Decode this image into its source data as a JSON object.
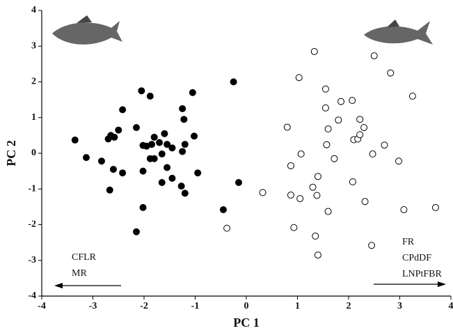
{
  "chart_data": {
    "type": "scatter",
    "xlabel": "PC 1",
    "ylabel": "PC 2",
    "xlim": [
      -4,
      4
    ],
    "ylim": [
      -4,
      4
    ],
    "xticks": [
      -4,
      -3,
      -2,
      -1,
      0,
      1,
      2,
      3,
      4
    ],
    "yticks": [
      -4,
      -3,
      -2,
      -1,
      0,
      1,
      2,
      3,
      4
    ],
    "annotations": [
      "CFLR",
      "MR",
      "FR",
      "CPdDF",
      "LNPtFBR"
    ],
    "series": [
      {
        "color": "#000000",
        "marker": "filled",
        "x": [
          -3.35,
          -3.13,
          -2.83,
          -2.7,
          -2.65,
          -2.58,
          -2.5,
          -2.42,
          -2.42,
          -2.6,
          -2.67,
          -2.15,
          -2.05,
          -1.88,
          -2.02,
          -1.95,
          -1.85,
          -1.8,
          -1.88,
          -1.8,
          -2.02,
          -1.7,
          -1.6,
          -1.55,
          -1.45,
          -1.65,
          -1.55,
          -1.45,
          -1.65,
          -1.25,
          -1.22,
          -1.25,
          -1.2,
          -1.05,
          -1.02,
          -1.27,
          -1.2,
          -0.95,
          -2.02,
          -2.15,
          -0.25,
          -0.15,
          -0.45
        ],
        "values": [
          0.37,
          -0.12,
          -0.22,
          0.4,
          0.5,
          0.45,
          0.65,
          1.22,
          -0.55,
          -0.45,
          -1.03,
          0.72,
          1.75,
          1.6,
          0.22,
          0.2,
          0.25,
          0.45,
          -0.15,
          -0.15,
          -0.5,
          0.3,
          0.55,
          0.25,
          0.15,
          -0.02,
          -0.4,
          -0.7,
          -0.82,
          1.25,
          0.95,
          0.05,
          0.25,
          1.7,
          0.48,
          -0.92,
          -1.12,
          -0.55,
          -1.52,
          -2.2,
          2.0,
          -0.82,
          -1.58
        ]
      },
      {
        "color": "#000000",
        "marker": "open",
        "x": [
          1.33,
          2.5,
          2.82,
          1.03,
          3.25,
          1.55,
          1.85,
          2.07,
          1.55,
          1.8,
          2.22,
          0.8,
          1.6,
          2.3,
          2.1,
          2.18,
          2.22,
          1.57,
          1.07,
          2.47,
          2.7,
          1.72,
          2.98,
          0.87,
          1.4,
          1.3,
          2.08,
          0.32,
          0.87,
          1.05,
          1.38,
          2.32,
          1.6,
          3.08,
          3.7,
          0.93,
          1.35,
          -0.38,
          2.45,
          1.4
        ],
        "values": [
          2.85,
          2.73,
          2.25,
          2.12,
          1.6,
          1.8,
          1.45,
          1.48,
          1.27,
          0.93,
          0.95,
          0.73,
          0.68,
          0.72,
          0.38,
          0.4,
          0.52,
          0.24,
          -0.02,
          -0.02,
          0.23,
          -0.15,
          -0.22,
          -0.35,
          -0.65,
          -0.95,
          -0.8,
          -1.1,
          -1.17,
          -1.27,
          -1.18,
          -1.35,
          -1.63,
          -1.58,
          -1.52,
          -2.08,
          -2.32,
          -2.1,
          -2.58,
          -2.85
        ]
      }
    ]
  }
}
